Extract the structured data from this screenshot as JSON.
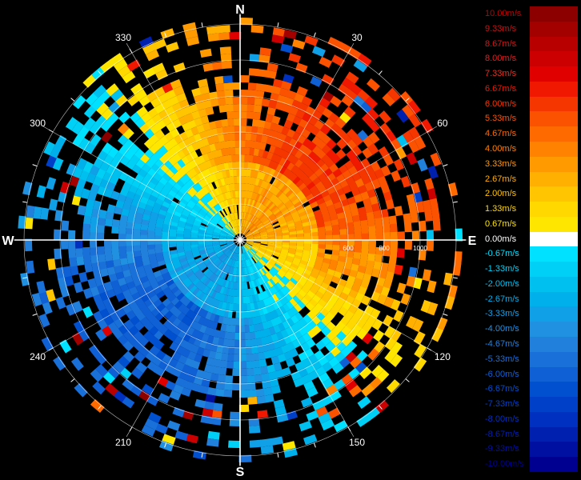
{
  "chart_data": {
    "type": "heatmap",
    "subtype": "polar-ppi-velocity",
    "grid": true,
    "compass": {
      "north": "N",
      "south": "S",
      "east": "E",
      "west": "W"
    },
    "azimuth_labels": [
      "30",
      "60",
      "120",
      "150",
      "210",
      "240",
      "300",
      "330"
    ],
    "azimuth_angles": [
      30,
      60,
      120,
      150,
      210,
      240,
      300,
      330
    ],
    "range_labels": [
      "600",
      "800",
      "1000"
    ],
    "range_values": [
      600,
      800,
      1000
    ],
    "range_max": 1200,
    "ring_values": [
      200,
      400,
      600,
      800,
      1000,
      1200
    ],
    "legend": {
      "placement": "right",
      "labels": [
        "10.00m/s",
        "9.33m/s",
        "8.67m/s",
        "8.00m/s",
        "7.33m/s",
        "6.67m/s",
        "6.00m/s",
        "5.33m/s",
        "4.67m/s",
        "4.00m/s",
        "3.33m/s",
        "2.67m/s",
        "2.00m/s",
        "1.33m/s",
        "0.67m/s",
        "0.00m/s",
        "-0.67m/s",
        "-1.33m/s",
        "-2.00m/s",
        "-2.67m/s",
        "-3.33m/s",
        "-4.00m/s",
        "-4.67m/s",
        "-5.33m/s",
        "-6.00m/s",
        "-6.67m/s",
        "-7.33m/s",
        "-8.00m/s",
        "-8.67m/s",
        "-9.33m/s",
        "-10.00m/s"
      ],
      "colors": [
        "#8c0000",
        "#a30000",
        "#b80000",
        "#cc0000",
        "#e00000",
        "#f01800",
        "#f53600",
        "#fa5200",
        "#ff6a00",
        "#ff8300",
        "#ff9a00",
        "#ffb000",
        "#ffc500",
        "#ffd800",
        "#ffe600",
        "#ffffff",
        "#00e0ff",
        "#00d0f5",
        "#00c0f0",
        "#00b0eb",
        "#10a0e8",
        "#2090e0",
        "#2080dc",
        "#1870d8",
        "#1060d5",
        "#0050d0",
        "#0040c8",
        "#0030c0",
        "#0020b0",
        "#0010a0",
        "#000090"
      ]
    },
    "velocity_pattern": {
      "approaching_azimuth_deg": 45,
      "receding_azimuth_deg": 225,
      "inner_radius": 430,
      "inner_amplitude_ms": 3.33,
      "outer_amplitude_ms": 6.0
    }
  }
}
